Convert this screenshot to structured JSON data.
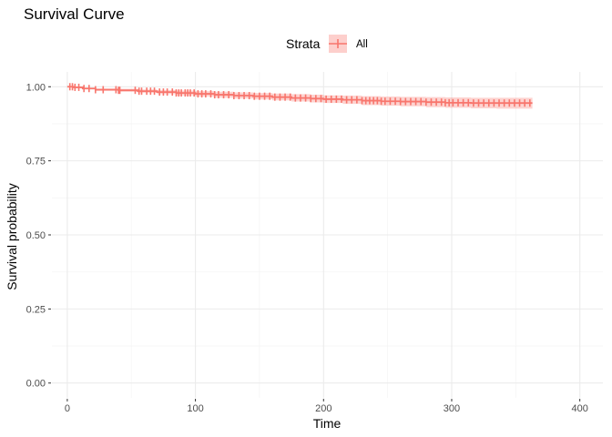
{
  "chart_data": {
    "type": "line",
    "title": "Survival Curve",
    "xlabel": "Time",
    "ylabel": "Survival probability",
    "xlim": [
      -12,
      418
    ],
    "ylim": [
      -0.05,
      1.05
    ],
    "x_ticks": [
      0,
      100,
      200,
      300,
      400
    ],
    "x_tick_labels": [
      "0",
      "100",
      "200",
      "300",
      "400"
    ],
    "y_ticks": [
      0,
      0.25,
      0.5,
      0.75,
      1.0
    ],
    "y_tick_labels": [
      "0.00",
      "0.25",
      "0.50",
      "0.75",
      "1.00"
    ],
    "grid": true,
    "legend": {
      "title": "Strata",
      "position": "top",
      "entries": [
        "All"
      ]
    },
    "colors": {
      "line": "#f8766d",
      "band": "#f8766d",
      "grid_major": "#ebebeb",
      "grid_minor": "#f5f5f5"
    },
    "series": [
      {
        "name": "All",
        "x": [
          0,
          5,
          12,
          22,
          40,
          55,
          70,
          85,
          100,
          115,
          130,
          145,
          160,
          175,
          190,
          200,
          215,
          230,
          245,
          260,
          280,
          295,
          315,
          335,
          363
        ],
        "y": [
          1.0,
          0.998,
          0.994,
          0.99,
          0.988,
          0.985,
          0.982,
          0.979,
          0.976,
          0.973,
          0.97,
          0.968,
          0.965,
          0.962,
          0.96,
          0.958,
          0.956,
          0.953,
          0.951,
          0.95,
          0.948,
          0.946,
          0.945,
          0.945,
          0.945
        ],
        "lower": [
          1.0,
          0.997,
          0.992,
          0.986,
          0.983,
          0.979,
          0.975,
          0.971,
          0.967,
          0.963,
          0.96,
          0.957,
          0.954,
          0.95,
          0.947,
          0.945,
          0.942,
          0.938,
          0.936,
          0.934,
          0.931,
          0.929,
          0.927,
          0.926,
          0.926
        ],
        "upper": [
          1.0,
          1.0,
          0.997,
          0.994,
          0.993,
          0.991,
          0.989,
          0.987,
          0.985,
          0.983,
          0.981,
          0.979,
          0.977,
          0.975,
          0.973,
          0.971,
          0.97,
          0.968,
          0.967,
          0.966,
          0.965,
          0.964,
          0.963,
          0.963,
          0.963
        ],
        "censor_times": [
          2,
          4,
          6,
          9,
          13,
          17,
          22,
          28,
          38,
          40,
          41,
          53,
          56,
          58,
          62,
          65,
          68,
          72,
          75,
          78,
          82,
          85,
          87,
          89,
          92,
          94,
          96,
          99,
          102,
          105,
          108,
          112,
          115,
          118,
          122,
          126,
          130,
          134,
          138,
          142,
          146,
          150,
          154,
          158,
          162,
          166,
          170,
          174,
          178,
          182,
          186,
          190,
          194,
          198,
          202,
          206,
          210,
          214,
          218,
          222,
          226,
          230,
          233,
          236,
          239,
          242,
          245,
          248,
          252,
          256,
          260,
          264,
          268,
          272,
          276,
          280,
          284,
          288,
          292,
          295,
          298,
          301,
          305,
          309,
          313,
          317,
          321,
          325,
          329,
          333,
          337,
          341,
          345,
          349,
          353,
          357,
          361
        ]
      }
    ]
  }
}
